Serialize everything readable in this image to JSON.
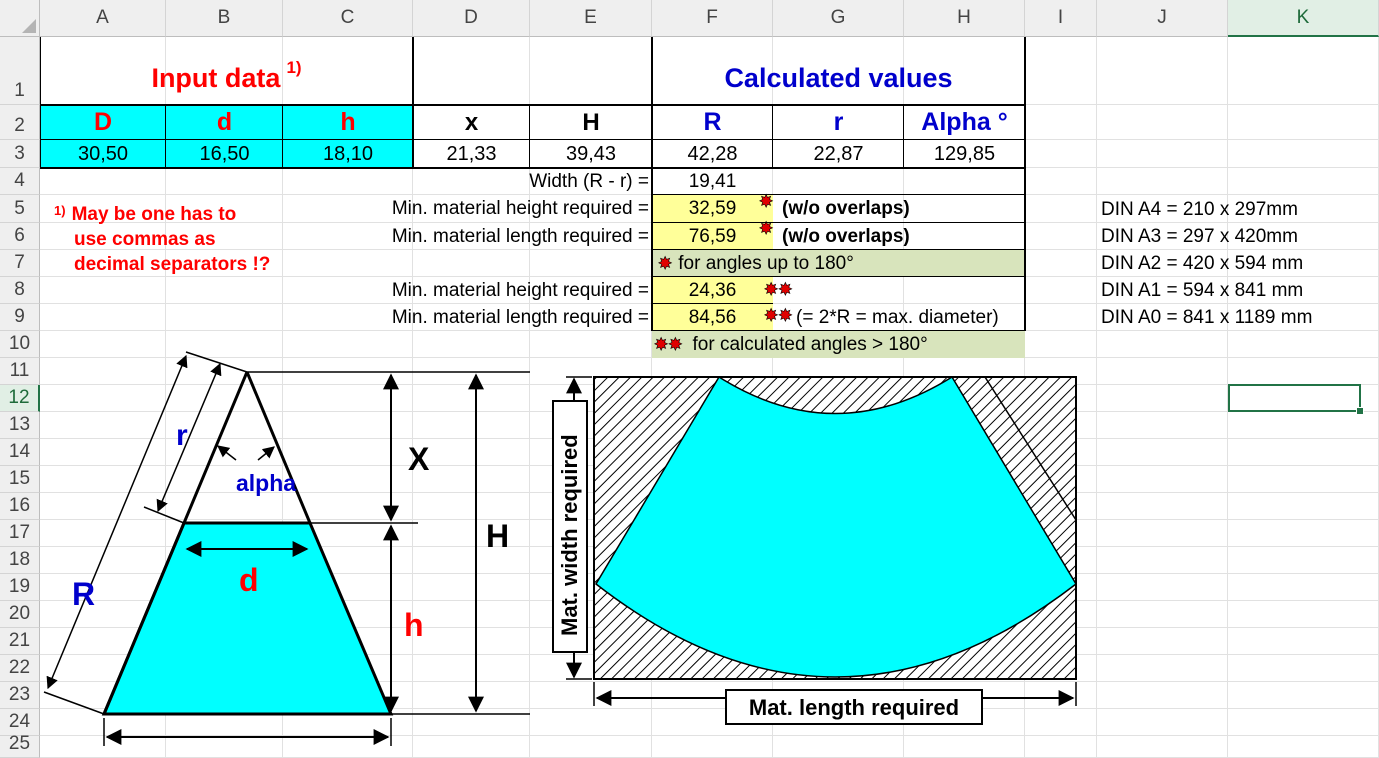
{
  "columns": [
    "A",
    "B",
    "C",
    "D",
    "E",
    "F",
    "G",
    "H",
    "I",
    "J",
    "K"
  ],
  "rows": [
    "1",
    "2",
    "3",
    "4",
    "5",
    "6",
    "7",
    "8",
    "9",
    "10",
    "11",
    "12",
    "13",
    "14",
    "15",
    "16",
    "17",
    "18",
    "19",
    "20",
    "21",
    "22",
    "23",
    "24",
    "25"
  ],
  "selected_cell": "K12",
  "input_title": "Input data",
  "input_note_mark": "1)",
  "calc_title": "Calculated values",
  "headers": {
    "D": "D",
    "d": "d",
    "h": "h",
    "x": "x",
    "H": "H",
    "R": "R",
    "r": "r",
    "alpha": "Alpha °"
  },
  "values": {
    "D": "30,50",
    "d": "16,50",
    "h": "18,10",
    "x": "21,33",
    "H": "39,43",
    "R": "42,28",
    "r": "22,87",
    "alpha": "129,85"
  },
  "width_label": "Width (R - r) =",
  "width_value": "19,41",
  "min_height_label": "Min. material height required =",
  "min_length_label": "Min. material length required =",
  "min_height_1": "32,59",
  "min_length_1": "76,59",
  "overlaps_note": "(w/o overlaps)",
  "angles_180_note": "for angles up to 180°",
  "min_height_2": "24,36",
  "min_length_2": "84,56",
  "diameter_note": "(= 2*R = max. diameter)",
  "angles_gt_180_note": "for calculated angles > 180°",
  "footnote": {
    "mark": "1)",
    "line1": "May be one has to",
    "line2": "use commas as",
    "line3": "decimal separators !?"
  },
  "din_sizes": [
    "DIN A4 = 210 x 297mm",
    "DIN A3 = 297 x 420mm",
    "DIN A2 = 420 x 594 mm",
    "DIN A1 = 594 x 841 mm",
    "DIN A0 = 841 x 1189 mm"
  ],
  "cone_labels": {
    "r": "r",
    "alpha": "alpha",
    "X": "X",
    "H": "H",
    "R": "R",
    "d": "d",
    "h": "h"
  },
  "material_labels": {
    "width": "Mat. width required",
    "length": "Mat. length required"
  },
  "colors": {
    "input_red": "#ff0000",
    "calc_blue": "#0000cc",
    "cyan": "#00ffff",
    "yellow": "#ffff99",
    "green": "#d8e4bc",
    "selection": "#217346"
  }
}
